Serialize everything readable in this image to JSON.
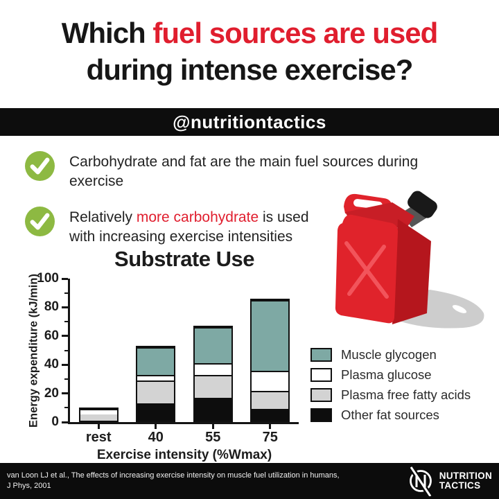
{
  "title": {
    "prefix": "Which ",
    "highlight": "fuel sources are used",
    "line2": "during intense exercise?"
  },
  "banner": {
    "handle": "@nutritiontactics"
  },
  "checklist": {
    "items": [
      {
        "line1_prefix": "Carbohydrate and fat are the main fuel sources during",
        "line1_highlight": "",
        "line1_suffix": "",
        "line2": "exercise"
      },
      {
        "line1_prefix": "Relatively ",
        "line1_highlight": "more carbohydrate",
        "line1_suffix": " is used",
        "line2": "with increasing exercise intensities"
      }
    ]
  },
  "chart_data": {
    "type": "bar",
    "stacked": true,
    "title": "Substrate Use",
    "xlabel": "Exercise intensity (%Wmax)",
    "ylabel": "Energy expenditure (kJ/min)",
    "ylim": [
      0,
      100
    ],
    "yticks": [
      0,
      20,
      40,
      60,
      80,
      100
    ],
    "minor_ticks": true,
    "grid": false,
    "categories": [
      "rest",
      "40",
      "55",
      "75"
    ],
    "series_bottom_to_top": [
      {
        "name": "Other fat sources",
        "color": "#0d0d0d",
        "values": [
          0,
          12,
          16,
          8
        ]
      },
      {
        "name": "Plasma free fatty acids",
        "color": "#d3d3d3",
        "values": [
          4.5,
          16,
          16,
          13
        ]
      },
      {
        "name": "Plasma glucose",
        "color": "#ffffff",
        "values": [
          3.5,
          4,
          8,
          14
        ]
      },
      {
        "name": "Muscle glycogen",
        "color": "#7ea9a4",
        "values": [
          0,
          19,
          25,
          49
        ]
      }
    ],
    "totals": [
      8,
      51,
      65,
      84
    ],
    "legend": [
      {
        "label": "Muscle glycogen",
        "color": "#7ea9a4"
      },
      {
        "label": "Plasma glucose",
        "color": "#ffffff"
      },
      {
        "label": "Plasma free fatty acids",
        "color": "#d3d3d3"
      },
      {
        "label": "Other fat sources",
        "color": "#0d0d0d"
      }
    ],
    "legend_position": "right"
  },
  "footer": {
    "citation_line1": "van Loon LJ et al., The effects of increasing exercise intensity on muscle fuel utilization in humans,",
    "citation_line2": "J Phys, 2001",
    "brand_line1": "NUTRITION",
    "brand_line2": "TACTICS"
  },
  "colors": {
    "accent_red": "#e01e2e",
    "check_green": "#8db942",
    "teal": "#7ea9a4",
    "banner_black": "#0d0d0d"
  }
}
